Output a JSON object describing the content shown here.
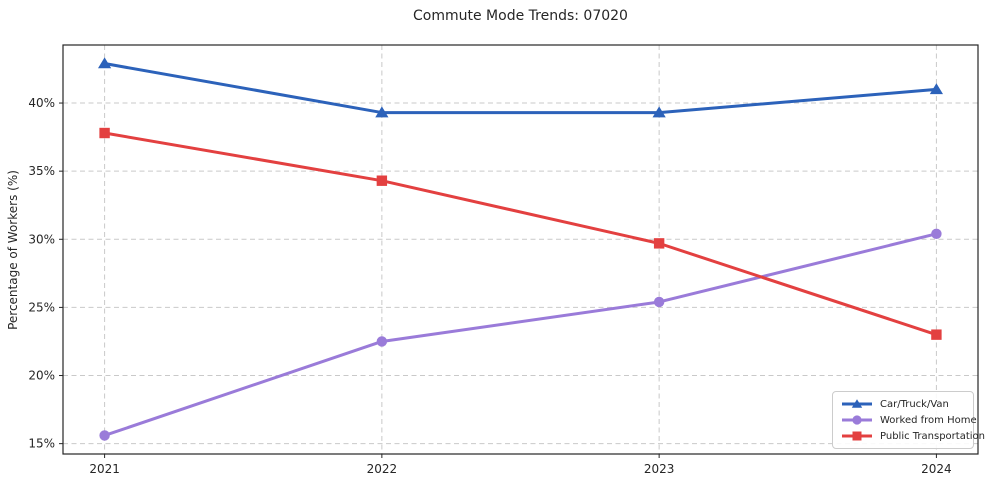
{
  "chart_data": {
    "type": "line",
    "title": "Commute Mode Trends: 07020",
    "xlabel": "",
    "ylabel": "Percentage of Workers (%)",
    "x": [
      2021,
      2022,
      2023,
      2024
    ],
    "x_tick_labels": [
      "2021",
      "2022",
      "2023",
      "2024"
    ],
    "series": [
      {
        "name": "Car/Truck/Van",
        "color": "#2c62ba",
        "marker": "triangle",
        "values": [
          42.9,
          39.3,
          39.3,
          41.0
        ]
      },
      {
        "name": "Worked from Home",
        "color": "#9a7bd9",
        "marker": "circle",
        "values": [
          15.6,
          22.5,
          25.4,
          30.4
        ]
      },
      {
        "name": "Public Transportation",
        "color": "#e34040",
        "marker": "square",
        "values": [
          37.8,
          34.3,
          29.7,
          23.0
        ]
      }
    ],
    "yticks": [
      15,
      20,
      25,
      30,
      35,
      40
    ],
    "ytick_suffix": "%",
    "ylim": [
      14.24,
      44.26
    ],
    "xlim": [
      2020.85,
      2024.15
    ],
    "grid": true,
    "grid_style": "dashed",
    "legend_position": "lower right",
    "colors": {
      "grid": "#c9c9c9",
      "spine": "#262626",
      "text": "#262626",
      "background": "#ffffff"
    }
  }
}
